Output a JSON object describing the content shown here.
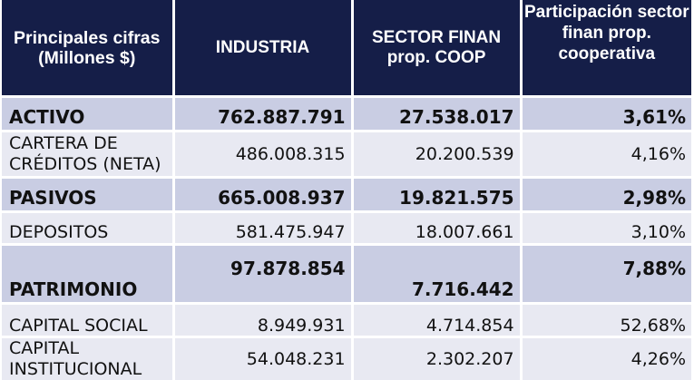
{
  "header": {
    "col1": "Principales cifras (Millones $)",
    "col2": "INDUSTRIA",
    "col3": "SECTOR FINAN prop. COOP",
    "col4": "Participación sector finan prop. cooperativa"
  },
  "rows": [
    {
      "label": "ACTIVO",
      "industria": "762.887.791",
      "sector": "27.538.017",
      "participacion": "3,61%"
    },
    {
      "label": "CARTERA DE CRÉDITOS (NETA)",
      "industria": "486.008.315",
      "sector": "20.200.539",
      "participacion": "4,16%"
    },
    {
      "label": "PASIVOS",
      "industria": "665.008.937",
      "sector": "19.821.575",
      "participacion": "2,98%"
    },
    {
      "label": "DEPOSITOS",
      "industria": "581.475.947",
      "sector": "18.007.661",
      "participacion": "3,10%"
    },
    {
      "label": "PATRIMONIO",
      "industria": "97.878.854",
      "sector": "7.716.442",
      "participacion": "7,88%"
    },
    {
      "label": "CAPITAL SOCIAL",
      "industria": "8.949.931",
      "sector": "4.714.854",
      "participacion": "52,68%"
    },
    {
      "label": "CAPITAL INSTITUCIONAL",
      "industria": "54.048.231",
      "sector": "2.302.207",
      "participacion": "4,26%"
    }
  ],
  "colors": {
    "header_bg": "#151e48",
    "major_row_bg": "#c9cde3",
    "minor_row_bg": "#e8e9f2"
  }
}
